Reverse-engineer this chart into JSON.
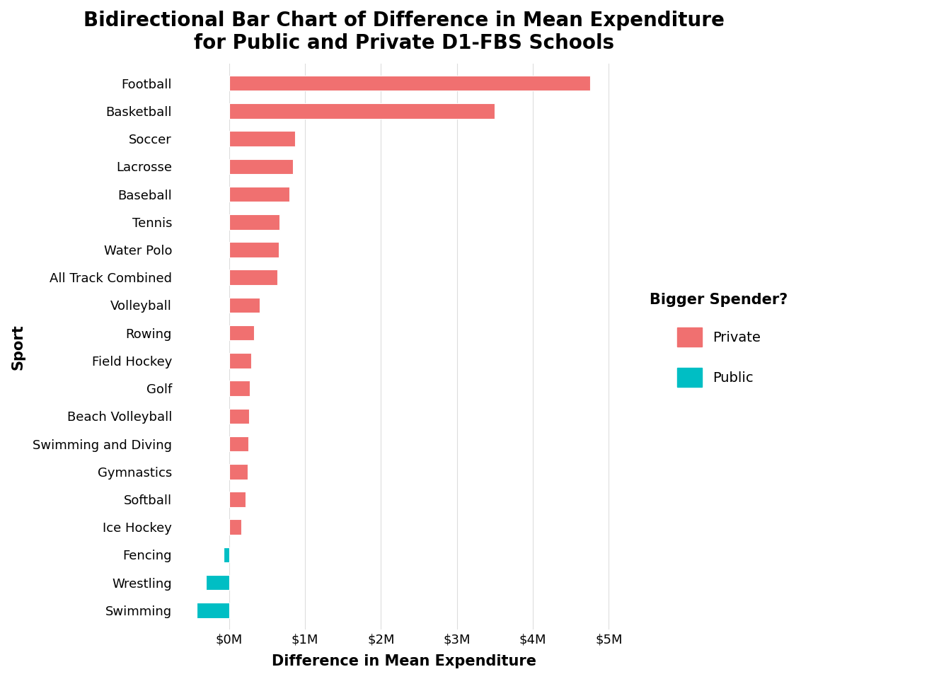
{
  "title": "Bidirectional Bar Chart of Difference in Mean Expenditure\nfor Public and Private D1-FBS Schools",
  "xlabel": "Difference in Mean Expenditure",
  "ylabel": "Sport",
  "sports": [
    "Football",
    "Basketball",
    "Soccer",
    "Lacrosse",
    "Baseball",
    "Tennis",
    "Water Polo",
    "All Track Combined",
    "Volleyball",
    "Rowing",
    "Field Hockey",
    "Golf",
    "Beach Volleyball",
    "Swimming and Diving",
    "Gymnastics",
    "Softball",
    "Ice Hockey",
    "Fencing",
    "Wrestling",
    "Swimming"
  ],
  "values": [
    4750000,
    3500000,
    870000,
    840000,
    790000,
    660000,
    650000,
    640000,
    400000,
    330000,
    290000,
    270000,
    260000,
    250000,
    240000,
    220000,
    160000,
    -70000,
    -310000,
    -430000
  ],
  "private_color": "#F07070",
  "public_color": "#00BEC4",
  "background_color": "#FFFFFF",
  "grid_color": "#DDDDDD",
  "title_fontsize": 20,
  "axis_label_fontsize": 15,
  "tick_fontsize": 13,
  "legend_title_fontsize": 15,
  "legend_fontsize": 14,
  "xlim_min": -700000,
  "xlim_max": 5300000,
  "xticks": [
    0,
    1000000,
    2000000,
    3000000,
    4000000,
    5000000
  ],
  "xtick_labels": [
    "$0M",
    "$1M",
    "$2M",
    "$3M",
    "$4M",
    "$5M"
  ],
  "bar_height": 0.55
}
